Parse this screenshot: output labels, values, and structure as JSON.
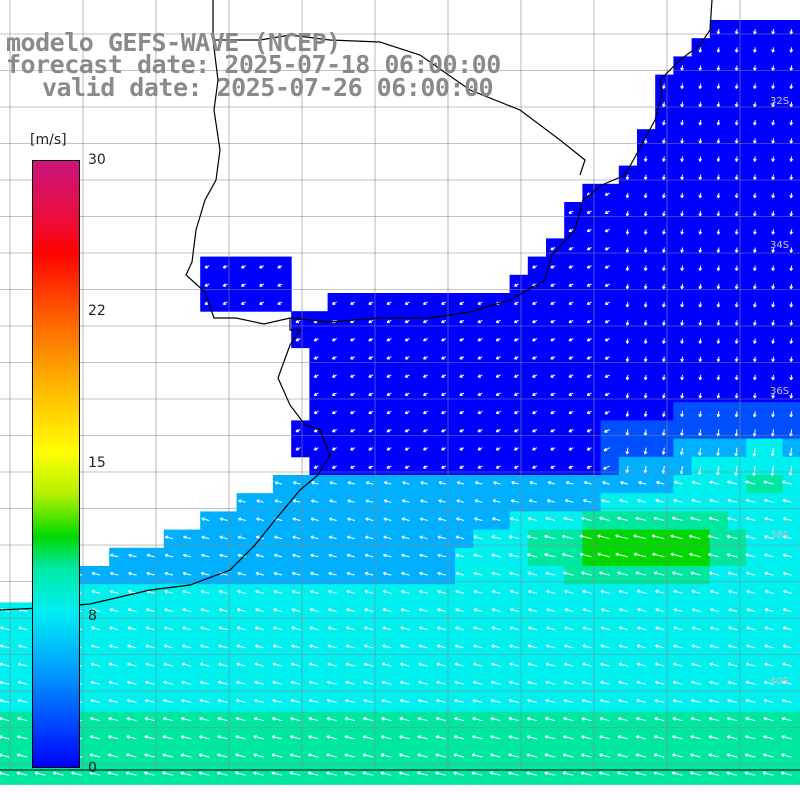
{
  "title": {
    "line1": "modelo GEFS-WAVE (NCEP)",
    "line2": "forecast date: 2025-07-18 06:00:00",
    "line3": "valid date: 2025-07-26 06:00:00"
  },
  "colorbar": {
    "unit": "[m/s]",
    "ticks": [
      "30",
      "22",
      "15",
      "8",
      "0"
    ],
    "tick_values": [
      30,
      22,
      15,
      8,
      0
    ],
    "min": 0,
    "max": 30,
    "colors": [
      "#0000ff",
      "#0050ff",
      "#00b0ff",
      "#00f0f0",
      "#00e8a0",
      "#00d800",
      "#b4f000",
      "#ffff00",
      "#ffb400",
      "#ff6a00",
      "#ff0000",
      "#ee0d3a",
      "#c8147a"
    ]
  },
  "map": {
    "land_color": "#ffffff",
    "grid_color": "#888888",
    "coast_color": "#000000",
    "arrow_color": "#ffffff",
    "lat_labels": [
      "32S",
      "34S",
      "36S",
      "38S",
      "40S"
    ]
  }
}
